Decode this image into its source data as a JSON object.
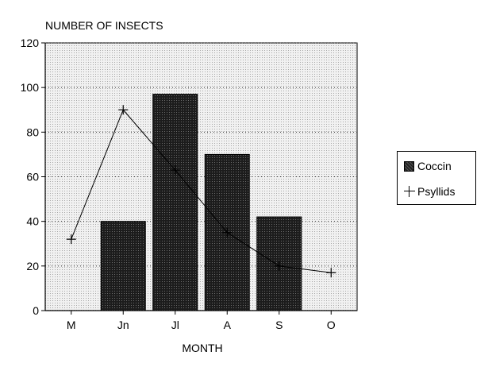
{
  "chart_data": {
    "type": "bar",
    "title": "NUMBER OF INSECTS",
    "xlabel": "MONTH",
    "ylabel": "NUMBER OF INSECTS",
    "categories": [
      "M",
      "Jn",
      "Jl",
      "A",
      "S",
      "O"
    ],
    "ylim": [
      0,
      120
    ],
    "yticks": [
      0,
      20,
      40,
      60,
      80,
      100,
      120
    ],
    "grid": true,
    "legend_position": "right",
    "series": [
      {
        "name": "Coccin",
        "kind": "bar",
        "values": [
          0,
          40,
          97,
          70,
          42,
          0
        ],
        "color": "#1e1e1e"
      },
      {
        "name": "Psyllids",
        "kind": "line",
        "marker": "+",
        "values": [
          32,
          90,
          63,
          35,
          20,
          17
        ],
        "color": "#000000"
      }
    ]
  },
  "legend": {
    "items": [
      {
        "label": "Coccin"
      },
      {
        "label": "Psyllids"
      }
    ]
  }
}
